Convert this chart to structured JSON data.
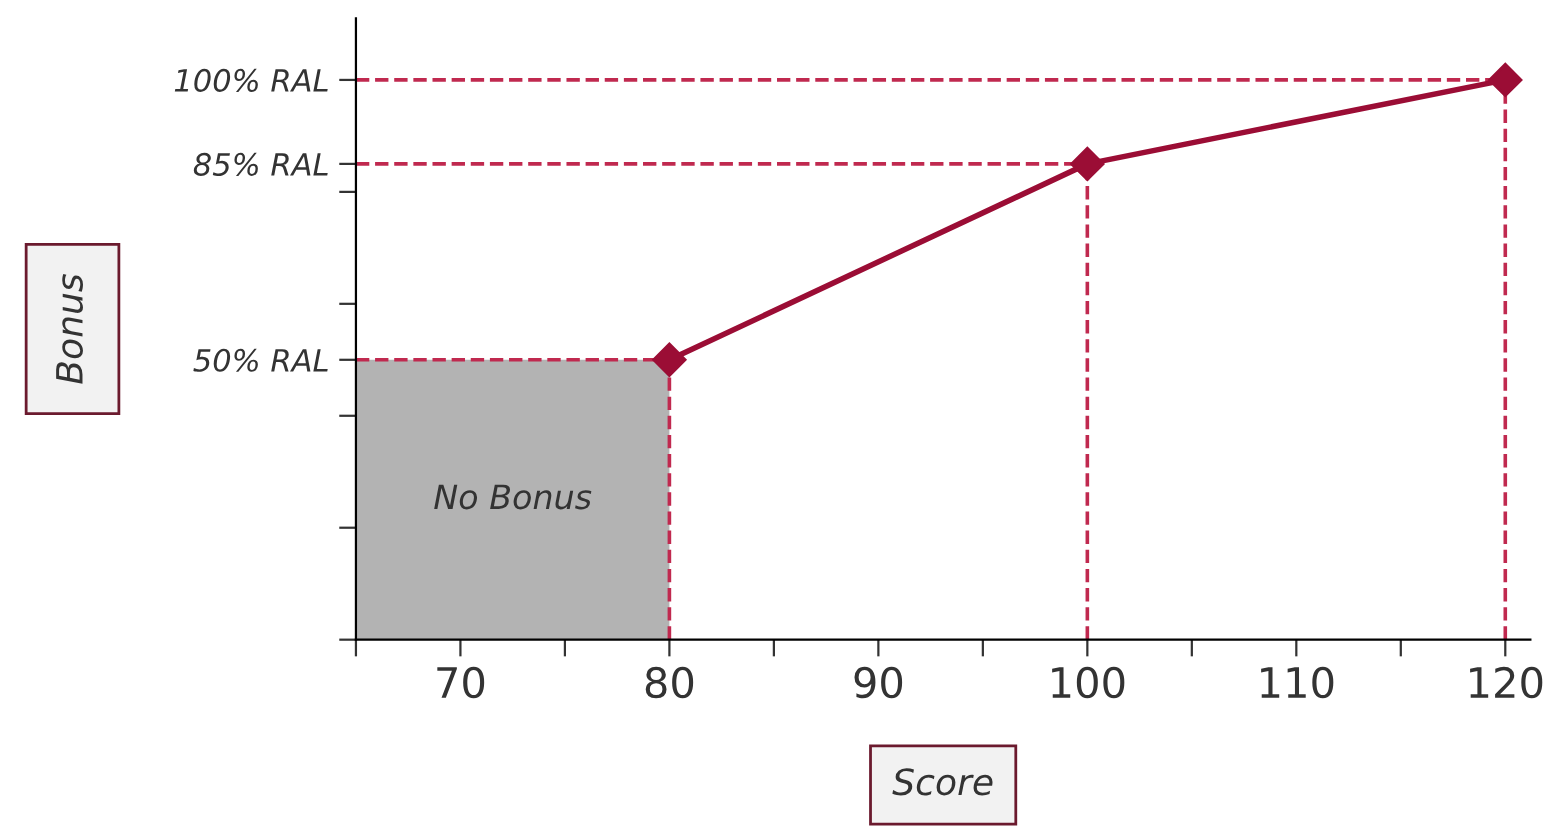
{
  "chart_data": {
    "type": "line",
    "xlabel": "Score",
    "ylabel": "Bonus",
    "x": [
      80,
      100,
      120
    ],
    "series": [
      {
        "color": "#9b0d35",
        "values": [
          50,
          85,
          100
        ]
      }
    ],
    "marker": "diamond",
    "line_style": "solid",
    "xlim": [
      65,
      121.2
    ],
    "ylim": [
      0,
      111
    ],
    "xticks": [
      {
        "value": 65,
        "label": null
      },
      70,
      {
        "value": 75,
        "label": null
      },
      80,
      {
        "value": 85,
        "label": null
      },
      90,
      {
        "value": 95,
        "label": null
      },
      100,
      {
        "value": 105,
        "label": null
      },
      110,
      {
        "value": 115,
        "label": null
      },
      120
    ],
    "yticks": [
      {
        "value": 0,
        "label": null
      },
      {
        "value": 20,
        "label": null
      },
      {
        "value": 40,
        "label": null
      },
      {
        "value": 50,
        "label": "50% RAL"
      },
      {
        "value": 60,
        "label": null
      },
      {
        "value": 80,
        "label": null
      },
      {
        "value": 85,
        "label": "85% RAL"
      },
      {
        "value": 100,
        "label": "100% RAL"
      }
    ],
    "ref_lines": [
      {
        "axis": "y",
        "value": 50,
        "color": "#c0294f",
        "line_style": "dashed"
      },
      {
        "axis": "y",
        "value": 85,
        "color": "#c0294f",
        "line_style": "dashed"
      },
      {
        "axis": "y",
        "value": 100,
        "color": "#c0294f",
        "line_style": "dashed"
      },
      {
        "axis": "x",
        "value": 80,
        "color": "#c0294f",
        "line_style": "dashed"
      },
      {
        "axis": "x",
        "value": 100,
        "color": "#c0294f",
        "line_style": "dashed"
      },
      {
        "axis": "x",
        "value": 120,
        "color": "#c0294f",
        "line_style": "dashed"
      }
    ],
    "bands": [
      {
        "axis": "x",
        "from": 65,
        "to": 80,
        "label": "No Bonus",
        "color": "#b3b3b3"
      }
    ],
    "grid": false
  }
}
